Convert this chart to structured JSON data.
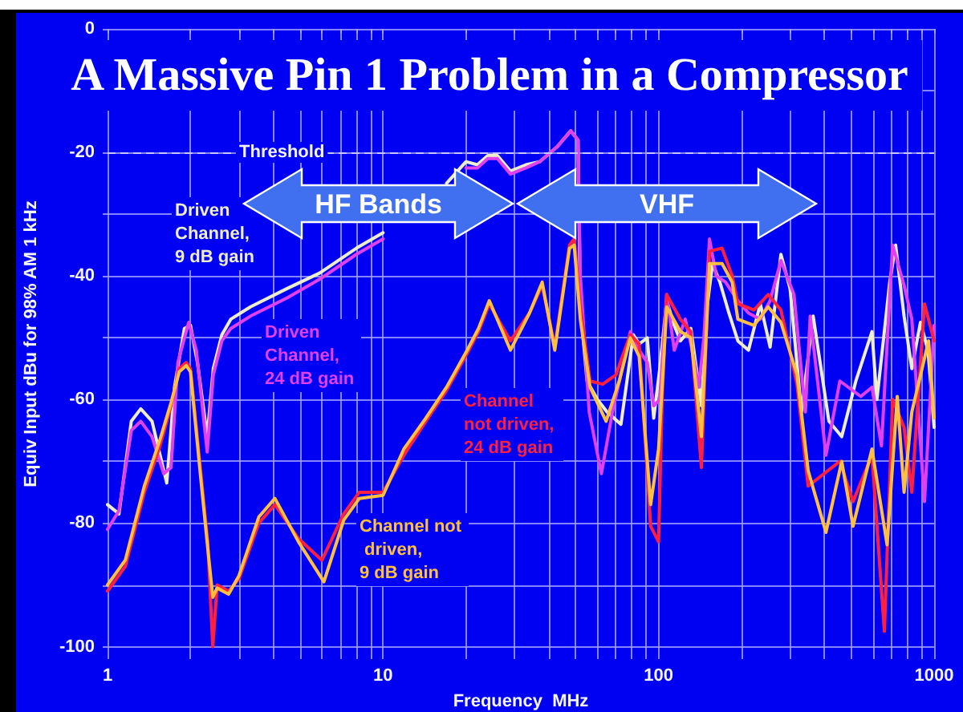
{
  "chart_data": {
    "type": "line",
    "title": "A Massive Pin 1 Problem in a Compressor",
    "xlabel": "Frequency  MHz",
    "ylabel": "Equiv Input dBu for 98% AM 1 kHz",
    "log": "x",
    "annotations": [
      "HF Bands",
      "VHF"
    ],
    "xlim": [
      1,
      1000
    ],
    "xticks": [
      1,
      {
        "value": 2,
        "label": null
      },
      {
        "value": 3,
        "label": null
      },
      {
        "value": 4,
        "label": null
      },
      {
        "value": 5,
        "label": null
      },
      {
        "value": 6,
        "label": null
      },
      {
        "value": 7,
        "label": null
      },
      {
        "value": 8,
        "label": null
      },
      {
        "value": 9,
        "label": null
      },
      10,
      {
        "value": 20,
        "label": null
      },
      {
        "value": 30,
        "label": null
      },
      {
        "value": 40,
        "label": null
      },
      {
        "value": 50,
        "label": null
      },
      {
        "value": 60,
        "label": null
      },
      {
        "value": 70,
        "label": null
      },
      {
        "value": 80,
        "label": null
      },
      {
        "value": 90,
        "label": null
      },
      100,
      {
        "value": 200,
        "label": null
      },
      {
        "value": 300,
        "label": null
      },
      {
        "value": 400,
        "label": null
      },
      {
        "value": 500,
        "label": null
      },
      {
        "value": 600,
        "label": null
      },
      {
        "value": 700,
        "label": null
      },
      {
        "value": 800,
        "label": null
      },
      {
        "value": 900,
        "label": null
      },
      1000
    ],
    "ylim": [
      -102,
      0
    ],
    "yticks": [
      0,
      {
        "value": -10,
        "label": null
      },
      -20,
      {
        "value": -30,
        "label": null
      },
      -40,
      {
        "value": -50,
        "label": null
      },
      -60,
      {
        "value": -70,
        "label": null
      },
      -80,
      {
        "value": -90,
        "label": null
      },
      -100
    ],
    "grid": true,
    "ref_lines": [
      {
        "axis": "y",
        "value": -20,
        "label": "Threshold",
        "color": "#c8c8ff",
        "line_style": "dashed"
      }
    ],
    "series": [
      {
        "name": "Driven Channel, 9 dB gain",
        "color": "#eeeecc",
        "x": [
          1,
          1.1,
          1.22,
          1.32,
          1.45,
          1.64,
          1.75,
          1.9,
          2,
          2.12,
          2.3,
          2.42,
          2.6,
          2.8,
          3.3,
          4.5,
          5.9,
          8,
          10,
          13,
          17,
          20,
          22,
          24,
          26,
          29,
          33,
          37,
          43,
          48,
          51,
          52,
          55,
          60,
          65,
          73,
          81,
          85,
          91,
          96,
          101,
          107,
          114,
          120,
          131,
          143,
          150,
          157,
          167,
          180,
          194,
          212,
          234,
          254,
          278,
          300,
          330,
          364,
          415,
          462,
          520,
          595,
          620,
          690,
          725,
          778,
          830,
          892,
          950,
          1000
        ],
        "values": [
          -77,
          -78.5,
          -63.5,
          -61.5,
          -63.5,
          -73.5,
          -58,
          -48.5,
          -48,
          -54,
          -66,
          -55,
          -49.5,
          -47,
          -45,
          -42,
          -39.5,
          -35.5,
          -33,
          null,
          -25,
          -21.5,
          -22,
          -20.5,
          -20.5,
          -23,
          -22,
          -21.5,
          -19,
          -16.5,
          -18,
          -45,
          -57,
          -60,
          -62,
          -64,
          -49.5,
          -51,
          -50,
          -63,
          -55,
          -44,
          -48,
          -50.5,
          -48.5,
          -61,
          -45,
          -38,
          -41,
          -46,
          -50.5,
          -52,
          -44.5,
          -51.5,
          -36.5,
          -42,
          -62,
          -46.5,
          -63.5,
          -66,
          -57,
          -49,
          -60,
          -41,
          -35,
          -46.5,
          -55,
          -47.5,
          -52,
          -64.5
        ]
      },
      {
        "name": "Driven Channel, 24 dB gain",
        "color": "#e040f0",
        "x": [
          1,
          1.1,
          1.22,
          1.32,
          1.45,
          1.6,
          1.7,
          1.8,
          1.97,
          2.1,
          2.3,
          2.42,
          2.6,
          2.8,
          3.3,
          4.5,
          5.9,
          8,
          10,
          13,
          17,
          20,
          22,
          24,
          26,
          29,
          33,
          37,
          43,
          48,
          51,
          52,
          56,
          62,
          68,
          79,
          85,
          91,
          96,
          101,
          107,
          114,
          125,
          131,
          140,
          146,
          153,
          162,
          175,
          194,
          212,
          234,
          254,
          278,
          310,
          341,
          355,
          405,
          455,
          542,
          595,
          644,
          707,
          778,
          830,
          923,
          1000
        ],
        "values": [
          -81,
          -78,
          -65,
          -63.5,
          -66,
          -72,
          -71,
          -54,
          -47.5,
          -52,
          -68.5,
          -56,
          -50.5,
          -48.5,
          -46.5,
          -43.5,
          -40.5,
          -36.5,
          -34,
          null,
          null,
          -22.5,
          -22.5,
          -21,
          -21,
          -23.5,
          -22.5,
          -21.5,
          -19,
          -16.5,
          -18,
          -40,
          -62,
          -72,
          -62,
          -49,
          -52,
          -54,
          -61,
          -60,
          -43,
          -52,
          -47,
          -51,
          -58,
          -50,
          -34,
          -40,
          -41,
          -44,
          -46,
          -47,
          -44,
          -37.5,
          -43,
          -62,
          -46.5,
          -69,
          -57,
          -59.5,
          -58,
          -67.5,
          -35,
          -41.5,
          -47,
          -76.5,
          -48
        ]
      },
      {
        "name": "Channel not driven, 24 dB gain",
        "color": "#ff2040",
        "x": [
          1,
          1.16,
          1.36,
          1.55,
          1.7,
          1.82,
          1.93,
          2,
          2.16,
          2.31,
          2.41,
          2.5,
          2.75,
          3,
          3.54,
          4.05,
          4.93,
          6,
          7.2,
          8.2,
          10,
          11.9,
          14.3,
          17,
          20.2,
          22.2,
          24.3,
          29,
          34,
          37.8,
          42,
          47.5,
          49.4,
          52,
          56.4,
          62.7,
          70,
          78.9,
          85,
          93.6,
          100,
          103,
          107,
          120,
          131,
          143,
          153,
          170,
          185,
          194,
          222,
          250,
          278,
          318,
          349,
          455,
          508,
          595,
          660,
          707,
          778,
          830,
          923,
          1000
        ],
        "values": [
          -91,
          -87,
          -75,
          -67.5,
          -61,
          -55,
          -54,
          -55,
          -70,
          -83,
          -100,
          -90,
          -91,
          -89,
          -80,
          -77,
          -82.5,
          -86,
          -78.5,
          -75,
          -75,
          -69,
          -63.5,
          -58.5,
          -52.5,
          -49,
          -44.5,
          -50.5,
          -46,
          -41.5,
          -51.5,
          -35,
          -34,
          -45,
          -57,
          -57.5,
          -56,
          -49.5,
          -51,
          -80.5,
          -83,
          -60,
          -43,
          -47,
          -49,
          -71,
          -36,
          -35.5,
          -40,
          -44.5,
          -45.5,
          -43,
          -45.5,
          -57.5,
          -74,
          -70,
          -76.5,
          -69,
          -97.5,
          -60,
          -64.5,
          -75,
          -44.5,
          -50.5
        ]
      },
      {
        "name": "Channel not driven, 9 dB gain",
        "color": "#ffc040",
        "x": [
          1,
          1.16,
          1.36,
          1.55,
          1.7,
          1.82,
          1.93,
          2,
          2.16,
          2.31,
          2.41,
          2.5,
          2.75,
          3,
          3.54,
          4.05,
          4.93,
          6.1,
          7.2,
          8.2,
          10,
          11.9,
          14.3,
          17,
          20.2,
          22.2,
          24.3,
          29,
          34,
          37.8,
          42,
          47.5,
          49.4,
          52,
          56.4,
          64.5,
          72,
          78.9,
          85,
          93.6,
          100,
          107,
          120,
          131,
          143,
          153,
          170,
          185,
          194,
          222,
          250,
          278,
          318,
          349,
          405,
          462,
          508,
          595,
          675,
          735,
          778,
          830,
          955,
          1000
        ],
        "values": [
          -90,
          -86,
          -74,
          -66.5,
          -60.5,
          -55.5,
          -54.5,
          -55.5,
          -71,
          -84,
          -92,
          -90.5,
          -91.5,
          -88.5,
          -79,
          -76,
          -83,
          -89.5,
          -79.5,
          -76,
          -75.5,
          -68,
          -63,
          -58,
          -52,
          -48.5,
          -44,
          -52,
          -46,
          -41,
          -52,
          -35.5,
          -35,
          -47,
          -58,
          -63.5,
          -57,
          -50,
          -53,
          -77,
          -68,
          -45,
          -49,
          -50,
          -66,
          -38,
          -38,
          -41,
          -47,
          -48,
          -45,
          -47.5,
          -56,
          -71.5,
          -81.5,
          -70,
          -80.5,
          -68,
          -83.5,
          -59.5,
          -75,
          -62,
          -50.5,
          -63
        ]
      }
    ]
  }
}
